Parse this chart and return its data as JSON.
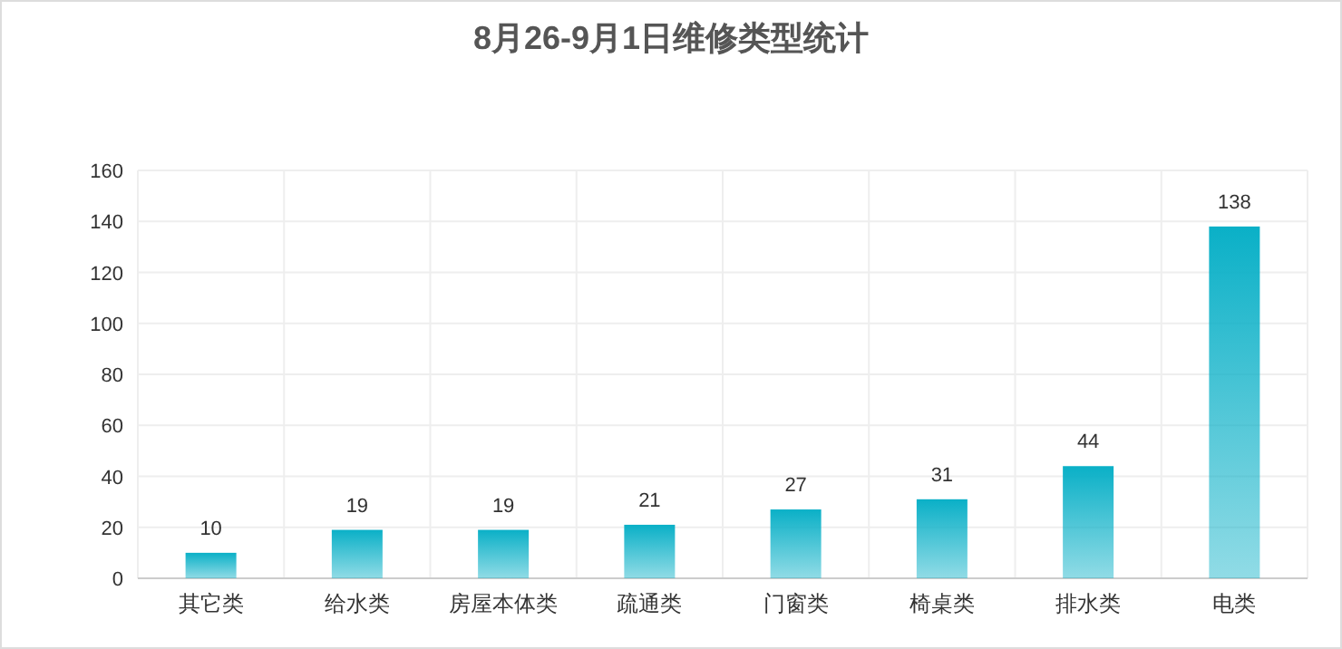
{
  "chart_data": {
    "type": "bar",
    "title": "8月26-9月1日维修类型统计",
    "categories": [
      "其它类",
      "给水类",
      "房屋本体类",
      "疏通类",
      "门窗类",
      "椅桌类",
      "排水类",
      "电类"
    ],
    "values": [
      10,
      19,
      19,
      21,
      27,
      31,
      44,
      138
    ],
    "color": "#0ab0c7",
    "ylim": [
      0,
      160
    ],
    "yticks": [
      0,
      20,
      40,
      60,
      80,
      100,
      120,
      140,
      160
    ],
    "grid": true,
    "data_labels": true
  }
}
